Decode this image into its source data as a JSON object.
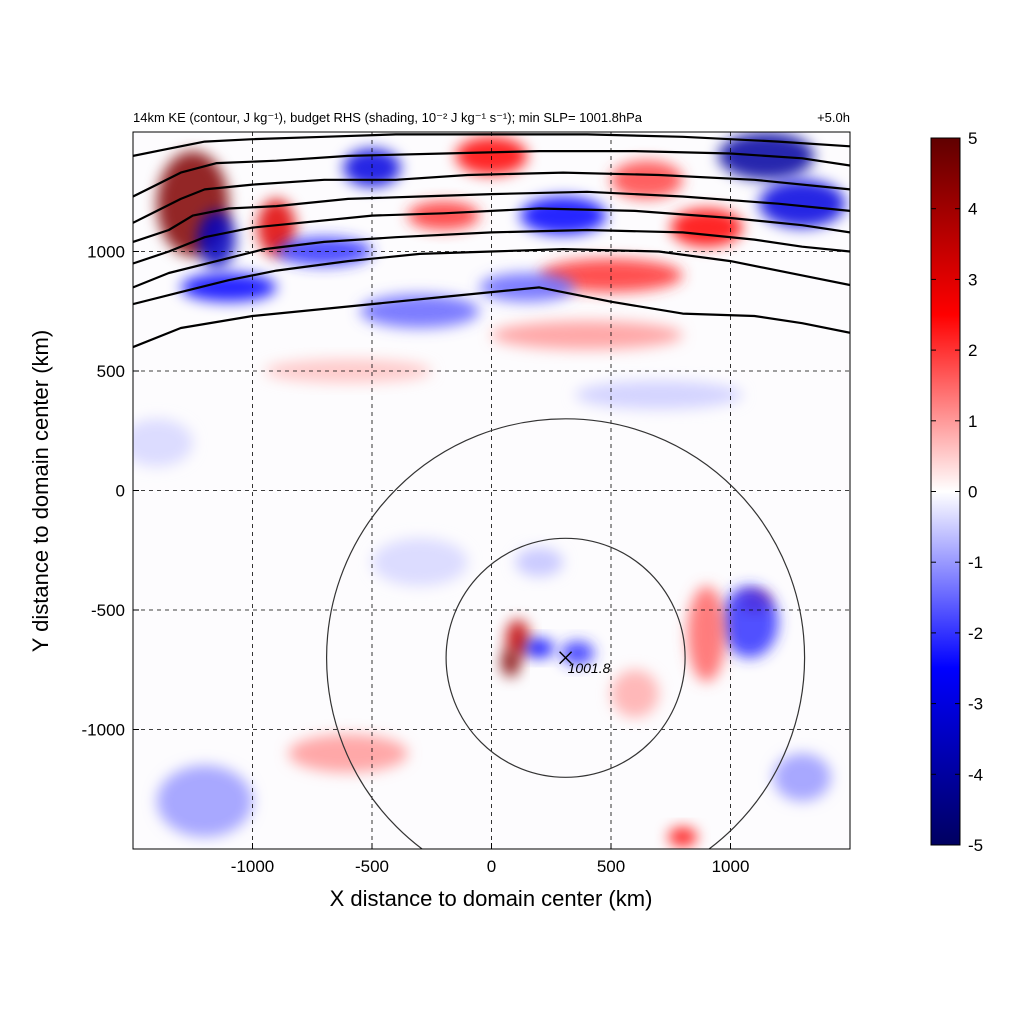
{
  "chart_data": {
    "type": "heatmap",
    "title": "14km KE (contour, J kg⁻¹), budget RHS (shading, 10⁻² J kg⁻¹ s⁻¹); min SLP= 1001.8hPa",
    "time_label": "+5.0h",
    "xlabel": "X distance to domain center (km)",
    "ylabel": "Y distance to domain center (km)",
    "xlim": [
      -1500,
      1500
    ],
    "ylim": [
      -1500,
      1500
    ],
    "xticks": [
      -1000,
      -500,
      0,
      500,
      1000
    ],
    "yticks": [
      -1000,
      -500,
      0,
      500,
      1000
    ],
    "grid": "dashed",
    "colorbar": {
      "min": -5,
      "max": 5,
      "ticks": [
        5,
        4,
        3,
        2,
        1,
        0,
        -1,
        -2,
        -3,
        -4,
        -5
      ],
      "tick_labels": [
        "5",
        "4",
        "3",
        "2",
        "1",
        "0",
        "-1",
        "-2",
        "-3",
        "-4",
        "-5"
      ],
      "colormap": [
        "#000060",
        "#0000ff",
        "#ffffff",
        "#ff0000",
        "#600000"
      ]
    },
    "storm_center": {
      "x": 310,
      "y": -700,
      "label": "1001.8"
    },
    "range_rings_km": [
      500,
      1000
    ],
    "blobs": [
      {
        "x": 110,
        "y": -620,
        "rx": 50,
        "ry": 80,
        "v": 3.5
      },
      {
        "x": 80,
        "y": -720,
        "rx": 40,
        "ry": 60,
        "v": 4.5
      },
      {
        "x": 200,
        "y": -660,
        "rx": 60,
        "ry": 40,
        "v": -2.5
      },
      {
        "x": 360,
        "y": -680,
        "rx": 70,
        "ry": 50,
        "v": -2
      },
      {
        "x": 1100,
        "y": -470,
        "rx": 60,
        "ry": 40,
        "v": 3
      },
      {
        "x": 1080,
        "y": -550,
        "rx": 120,
        "ry": 150,
        "v": -2
      },
      {
        "x": 900,
        "y": -600,
        "rx": 80,
        "ry": 200,
        "v": 1.5
      },
      {
        "x": 800,
        "y": -1450,
        "rx": 60,
        "ry": 40,
        "v": 2.5
      },
      {
        "x": 1300,
        "y": -1200,
        "rx": 120,
        "ry": 100,
        "v": -1
      },
      {
        "x": -1200,
        "y": -1300,
        "rx": 200,
        "ry": 150,
        "v": -1
      },
      {
        "x": -600,
        "y": -1100,
        "rx": 250,
        "ry": 80,
        "v": 1
      },
      {
        "x": -1250,
        "y": 1200,
        "rx": 150,
        "ry": 220,
        "v": 4.5
      },
      {
        "x": -1150,
        "y": 1050,
        "rx": 80,
        "ry": 120,
        "v": -3.5
      },
      {
        "x": -900,
        "y": 1100,
        "rx": 80,
        "ry": 120,
        "v": 3
      },
      {
        "x": -500,
        "y": 1350,
        "rx": 120,
        "ry": 80,
        "v": -3
      },
      {
        "x": 0,
        "y": 1400,
        "rx": 150,
        "ry": 80,
        "v": 2.5
      },
      {
        "x": 1150,
        "y": 1400,
        "rx": 200,
        "ry": 100,
        "v": -4
      },
      {
        "x": 900,
        "y": 1100,
        "rx": 150,
        "ry": 80,
        "v": 2.5
      },
      {
        "x": -700,
        "y": 1000,
        "rx": 200,
        "ry": 60,
        "v": -2
      },
      {
        "x": -1100,
        "y": 850,
        "rx": 200,
        "ry": 60,
        "v": -2.5
      },
      {
        "x": 500,
        "y": 900,
        "rx": 300,
        "ry": 70,
        "v": 2
      },
      {
        "x": 150,
        "y": 850,
        "rx": 200,
        "ry": 60,
        "v": -1.5
      },
      {
        "x": -300,
        "y": 750,
        "rx": 250,
        "ry": 70,
        "v": -1.5
      },
      {
        "x": 400,
        "y": 650,
        "rx": 400,
        "ry": 60,
        "v": 1
      },
      {
        "x": -600,
        "y": 500,
        "rx": 350,
        "ry": 50,
        "v": 0.6
      },
      {
        "x": 700,
        "y": 400,
        "rx": 350,
        "ry": 60,
        "v": -0.5
      },
      {
        "x": 1300,
        "y": 1200,
        "rx": 180,
        "ry": 100,
        "v": -3
      },
      {
        "x": 300,
        "y": 1150,
        "rx": 180,
        "ry": 80,
        "v": -2.5
      },
      {
        "x": -200,
        "y": 1150,
        "rx": 150,
        "ry": 60,
        "v": 2
      },
      {
        "x": 650,
        "y": 1300,
        "rx": 150,
        "ry": 80,
        "v": 1.8
      },
      {
        "x": -1400,
        "y": 200,
        "rx": 150,
        "ry": 100,
        "v": -0.4
      },
      {
        "x": -300,
        "y": -300,
        "rx": 200,
        "ry": 100,
        "v": -0.4
      },
      {
        "x": 200,
        "y": -300,
        "rx": 100,
        "ry": 60,
        "v": -0.6
      },
      {
        "x": 600,
        "y": -850,
        "rx": 100,
        "ry": 100,
        "v": 0.8
      }
    ],
    "contours": [
      {
        "x": [
          -1500,
          -1300,
          -1000,
          -500,
          -200,
          200,
          500,
          800,
          1100,
          1300,
          1500
        ],
        "y": [
          600,
          680,
          730,
          780,
          810,
          850,
          790,
          740,
          730,
          700,
          660
        ]
      },
      {
        "x": [
          -1500,
          -1300,
          -1100,
          -900,
          -600,
          -300,
          0,
          300,
          700,
          1000,
          1300,
          1500
        ],
        "y": [
          780,
          830,
          880,
          920,
          960,
          990,
          1000,
          1010,
          1000,
          960,
          900,
          860
        ]
      },
      {
        "x": [
          -1500,
          -1350,
          -1150,
          -950,
          -700,
          -400,
          0,
          400,
          800,
          1100,
          1300,
          1500
        ],
        "y": [
          850,
          910,
          960,
          1010,
          1040,
          1060,
          1080,
          1090,
          1080,
          1050,
          1020,
          1000
        ]
      },
      {
        "x": [
          -1500,
          -1350,
          -1200,
          -1000,
          -800,
          -500,
          -200,
          200,
          600,
          1000,
          1300,
          1500
        ],
        "y": [
          950,
          1000,
          1060,
          1100,
          1120,
          1150,
          1160,
          1180,
          1170,
          1140,
          1110,
          1080
        ]
      },
      {
        "x": [
          -1500,
          -1350,
          -1250,
          -1100,
          -900,
          -600,
          -300,
          0,
          400,
          800,
          1200,
          1500
        ],
        "y": [
          1040,
          1090,
          1150,
          1180,
          1190,
          1220,
          1230,
          1240,
          1250,
          1230,
          1200,
          1170
        ]
      },
      {
        "x": [
          -1500,
          -1400,
          -1300,
          -1200,
          -1000,
          -700,
          -400,
          -100,
          300,
          700,
          1100,
          1500
        ],
        "y": [
          1120,
          1170,
          1220,
          1260,
          1280,
          1300,
          1300,
          1320,
          1330,
          1320,
          1300,
          1260
        ]
      },
      {
        "x": [
          -1500,
          -1400,
          -1300,
          -1150,
          -900,
          -600,
          -200,
          200,
          600,
          1000,
          1300,
          1500
        ],
        "y": [
          1230,
          1280,
          1330,
          1370,
          1380,
          1400,
          1410,
          1420,
          1420,
          1410,
          1390,
          1360
        ]
      },
      {
        "x": [
          -1500,
          -1350,
          -1200,
          -1000,
          -700,
          -400,
          0,
          400,
          800,
          1200,
          1500
        ],
        "y": [
          1400,
          1430,
          1460,
          1470,
          1480,
          1490,
          1490,
          1490,
          1480,
          1460,
          1440
        ]
      }
    ]
  }
}
